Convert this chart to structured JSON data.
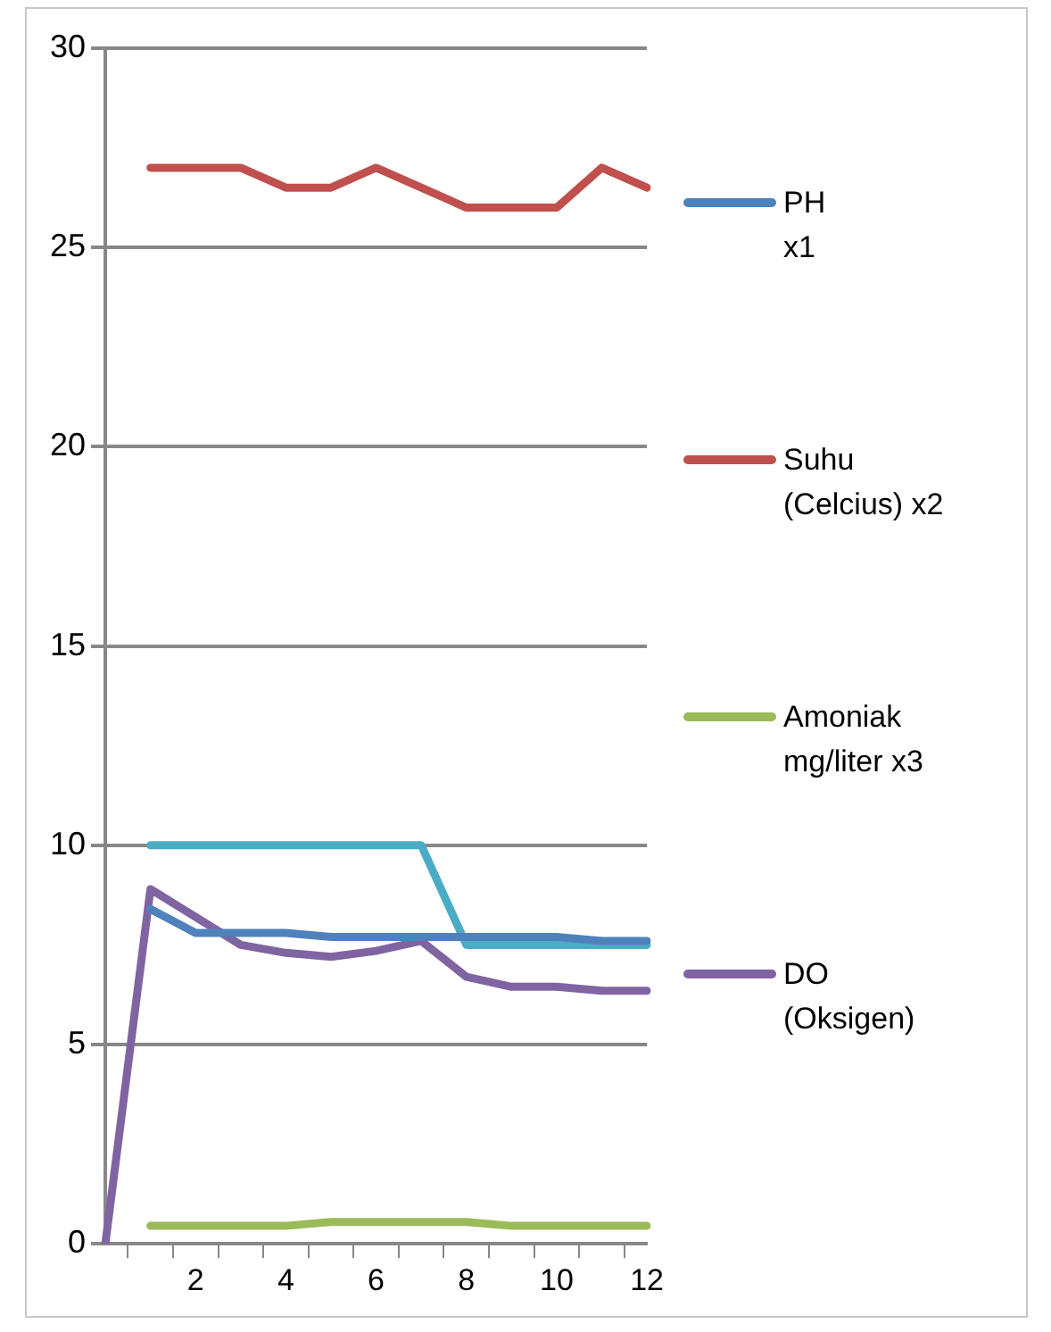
{
  "chart_data": {
    "type": "line",
    "categories": [
      null,
      null,
      "2",
      null,
      "4",
      null,
      "6",
      null,
      "8",
      null,
      "10",
      null,
      "12"
    ],
    "series": [
      {
        "name": "PH\nx1",
        "color": "#4f81bd",
        "values": [
          null,
          8.4,
          7.8,
          7.8,
          7.8,
          7.7,
          7.7,
          7.7,
          7.7,
          7.7,
          7.7,
          7.6,
          7.6
        ]
      },
      {
        "name": "Suhu\n(Celcius) x2",
        "color": "#c0504d",
        "values": [
          null,
          27,
          27,
          27,
          26.5,
          26.5,
          27,
          26.5,
          26,
          26,
          26,
          27,
          26.5
        ]
      },
      {
        "name": "Amoniak\nmg/liter x3",
        "color": "#9bbb59",
        "values": [
          null,
          0.45,
          0.45,
          0.45,
          0.45,
          0.55,
          0.55,
          0.55,
          0.55,
          0.45,
          0.45,
          0.45,
          0.45
        ]
      },
      {
        "name": "DO\n(Oksigen)",
        "color": "#8064a2",
        "values": [
          0,
          8.9,
          8.2,
          7.5,
          7.3,
          7.2,
          7.35,
          7.6,
          6.7,
          6.45,
          6.45,
          6.35,
          6.35
        ]
      },
      {
        "color": "#4bacc6",
        "values": [
          null,
          10,
          10,
          10,
          10,
          10,
          10,
          10,
          7.5,
          7.5,
          7.5,
          7.5,
          7.5
        ]
      }
    ],
    "ylim": [
      0,
      30
    ],
    "yticks": [
      0,
      5,
      10,
      15,
      20,
      25,
      30
    ],
    "grid": "y",
    "legend": "right",
    "marker": "none",
    "line_style": "solid"
  }
}
